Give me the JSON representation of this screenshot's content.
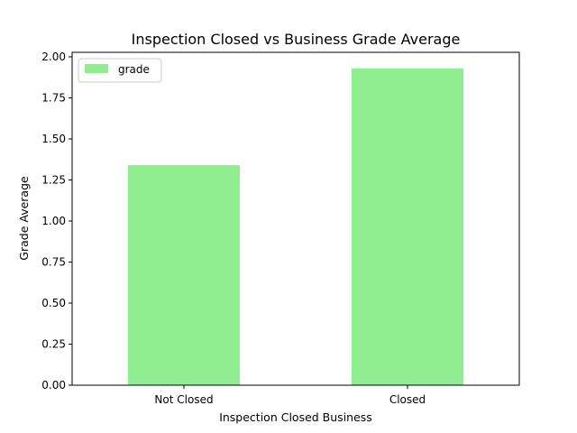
{
  "chart_data": {
    "type": "bar",
    "title": "Inspection Closed vs Business Grade Average",
    "xlabel": "Inspection Closed Business",
    "ylabel": "Grade Average",
    "categories": [
      "Not Closed",
      "Closed"
    ],
    "series": [
      {
        "name": "grade",
        "values": [
          1.34,
          1.93
        ]
      }
    ],
    "ylim": [
      0,
      2.0
    ],
    "yticks": [
      "0.00",
      "0.25",
      "0.50",
      "0.75",
      "1.00",
      "1.25",
      "1.50",
      "1.75",
      "2.00"
    ],
    "grid": false,
    "legend": "top-left",
    "colors": {
      "bar": "#90ee90",
      "axis": "#000000",
      "legend_border": "#cccccc"
    }
  }
}
